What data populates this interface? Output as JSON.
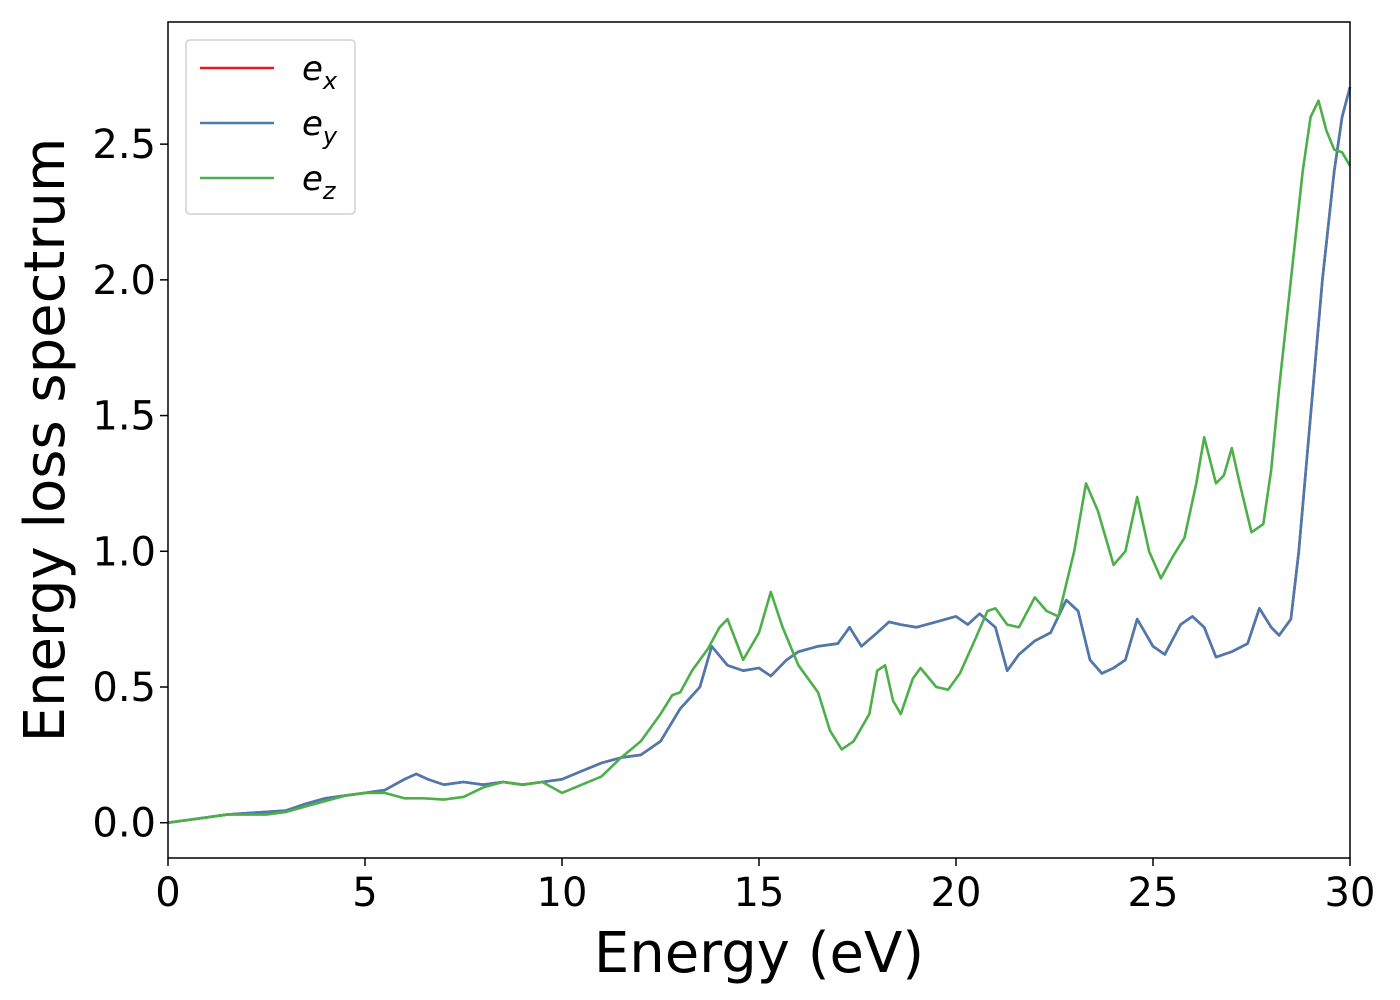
{
  "chart_data": {
    "type": "line",
    "xlabel": "Energy (eV)",
    "ylabel": "Energy loss spectrum",
    "xlim": [
      0,
      30
    ],
    "ylim": [
      -0.13,
      2.95
    ],
    "xticks": [
      0,
      5,
      10,
      15,
      20,
      25,
      30
    ],
    "xtick_labels": [
      "0",
      "5",
      "10",
      "15",
      "20",
      "25",
      "30"
    ],
    "yticks": [
      0.0,
      0.5,
      1.0,
      1.5,
      2.0,
      2.5
    ],
    "ytick_labels": [
      "0.0",
      "0.5",
      "1.0",
      "1.5",
      "2.0",
      "2.5"
    ],
    "grid": false,
    "legend_position": "top-left",
    "series": [
      {
        "name": "e_x",
        "label_base": "e",
        "label_sub": "x",
        "color": "#e41a1c",
        "x": [
          0,
          0.5,
          1,
          1.5,
          2,
          2.5,
          3,
          3.5,
          4,
          4.5,
          5,
          5.5,
          6,
          6.3,
          6.6,
          7,
          7.5,
          8,
          8.5,
          9,
          9.5,
          10,
          10.5,
          11,
          11.5,
          12,
          12.5,
          13,
          13.5,
          13.8,
          14.2,
          14.6,
          15,
          15.3,
          15.7,
          16,
          16.5,
          17,
          17.3,
          17.6,
          18,
          18.3,
          18.6,
          19,
          19.5,
          20,
          20.3,
          20.6,
          21,
          21.3,
          21.6,
          22,
          22.4,
          22.8,
          23.1,
          23.4,
          23.7,
          24,
          24.3,
          24.6,
          25,
          25.3,
          25.7,
          26,
          26.3,
          26.6,
          27,
          27.4,
          27.7,
          28,
          28.2,
          28.5,
          28.7,
          29,
          29.3,
          29.6,
          29.8,
          30
        ],
        "y": [
          0,
          0.01,
          0.02,
          0.03,
          0.035,
          0.04,
          0.045,
          0.07,
          0.09,
          0.1,
          0.11,
          0.12,
          0.16,
          0.18,
          0.16,
          0.14,
          0.15,
          0.14,
          0.15,
          0.14,
          0.15,
          0.16,
          0.19,
          0.22,
          0.24,
          0.25,
          0.3,
          0.42,
          0.5,
          0.65,
          0.58,
          0.56,
          0.57,
          0.54,
          0.6,
          0.63,
          0.65,
          0.66,
          0.72,
          0.65,
          0.7,
          0.74,
          0.73,
          0.72,
          0.74,
          0.76,
          0.73,
          0.77,
          0.72,
          0.56,
          0.62,
          0.67,
          0.7,
          0.82,
          0.78,
          0.6,
          0.55,
          0.57,
          0.6,
          0.75,
          0.65,
          0.62,
          0.73,
          0.76,
          0.72,
          0.61,
          0.63,
          0.66,
          0.79,
          0.72,
          0.69,
          0.75,
          1.0,
          1.5,
          2.0,
          2.4,
          2.6,
          2.71
        ]
      },
      {
        "name": "e_y",
        "label_base": "e",
        "label_sub": "y",
        "color": "#4a7bb0",
        "x": [
          0,
          0.5,
          1,
          1.5,
          2,
          2.5,
          3,
          3.5,
          4,
          4.5,
          5,
          5.5,
          6,
          6.3,
          6.6,
          7,
          7.5,
          8,
          8.5,
          9,
          9.5,
          10,
          10.5,
          11,
          11.5,
          12,
          12.5,
          13,
          13.5,
          13.8,
          14.2,
          14.6,
          15,
          15.3,
          15.7,
          16,
          16.5,
          17,
          17.3,
          17.6,
          18,
          18.3,
          18.6,
          19,
          19.5,
          20,
          20.3,
          20.6,
          21,
          21.3,
          21.6,
          22,
          22.4,
          22.8,
          23.1,
          23.4,
          23.7,
          24,
          24.3,
          24.6,
          25,
          25.3,
          25.7,
          26,
          26.3,
          26.6,
          27,
          27.4,
          27.7,
          28,
          28.2,
          28.5,
          28.7,
          29,
          29.3,
          29.6,
          29.8,
          30
        ],
        "y": [
          0,
          0.01,
          0.02,
          0.03,
          0.035,
          0.04,
          0.045,
          0.07,
          0.09,
          0.1,
          0.11,
          0.12,
          0.16,
          0.18,
          0.16,
          0.14,
          0.15,
          0.14,
          0.15,
          0.14,
          0.15,
          0.16,
          0.19,
          0.22,
          0.24,
          0.25,
          0.3,
          0.42,
          0.5,
          0.65,
          0.58,
          0.56,
          0.57,
          0.54,
          0.6,
          0.63,
          0.65,
          0.66,
          0.72,
          0.65,
          0.7,
          0.74,
          0.73,
          0.72,
          0.74,
          0.76,
          0.73,
          0.77,
          0.72,
          0.56,
          0.62,
          0.67,
          0.7,
          0.82,
          0.78,
          0.6,
          0.55,
          0.57,
          0.6,
          0.75,
          0.65,
          0.62,
          0.73,
          0.76,
          0.72,
          0.61,
          0.63,
          0.66,
          0.79,
          0.72,
          0.69,
          0.75,
          1.0,
          1.5,
          2.0,
          2.4,
          2.6,
          2.71
        ]
      },
      {
        "name": "e_z",
        "label_base": "e",
        "label_sub": "z",
        "color": "#4daf4a",
        "x": [
          0,
          0.5,
          1,
          1.5,
          2,
          2.5,
          3,
          3.5,
          4,
          4.5,
          5,
          5.5,
          6,
          6.5,
          7,
          7.5,
          8,
          8.5,
          9,
          9.5,
          10,
          10.5,
          11,
          11.5,
          12,
          12.5,
          12.8,
          13,
          13.3,
          13.7,
          14,
          14.2,
          14.6,
          15,
          15.3,
          15.6,
          16,
          16.5,
          16.8,
          17.1,
          17.4,
          17.8,
          18,
          18.2,
          18.4,
          18.6,
          18.9,
          19.1,
          19.5,
          19.8,
          20.1,
          20.5,
          20.8,
          21,
          21.3,
          21.6,
          22,
          22.3,
          22.6,
          23,
          23.3,
          23.6,
          24,
          24.3,
          24.6,
          24.9,
          25.2,
          25.5,
          25.8,
          26.1,
          26.3,
          26.6,
          26.8,
          27,
          27.2,
          27.5,
          27.8,
          28,
          28.2,
          28.5,
          28.8,
          29,
          29.2,
          29.4,
          29.6,
          29.8,
          30
        ],
        "y": [
          0,
          0.01,
          0.02,
          0.03,
          0.03,
          0.03,
          0.04,
          0.06,
          0.08,
          0.1,
          0.11,
          0.11,
          0.09,
          0.09,
          0.085,
          0.095,
          0.13,
          0.15,
          0.14,
          0.15,
          0.11,
          0.14,
          0.17,
          0.24,
          0.3,
          0.4,
          0.47,
          0.48,
          0.56,
          0.64,
          0.72,
          0.75,
          0.6,
          0.7,
          0.85,
          0.72,
          0.58,
          0.48,
          0.34,
          0.27,
          0.3,
          0.4,
          0.56,
          0.58,
          0.45,
          0.4,
          0.53,
          0.57,
          0.5,
          0.49,
          0.55,
          0.68,
          0.78,
          0.79,
          0.73,
          0.72,
          0.83,
          0.78,
          0.76,
          1.0,
          1.25,
          1.15,
          0.95,
          1.0,
          1.2,
          1.0,
          0.9,
          0.98,
          1.05,
          1.25,
          1.42,
          1.25,
          1.28,
          1.38,
          1.25,
          1.07,
          1.1,
          1.3,
          1.6,
          2.0,
          2.4,
          2.6,
          2.66,
          2.55,
          2.48,
          2.47,
          2.42
        ]
      }
    ]
  }
}
